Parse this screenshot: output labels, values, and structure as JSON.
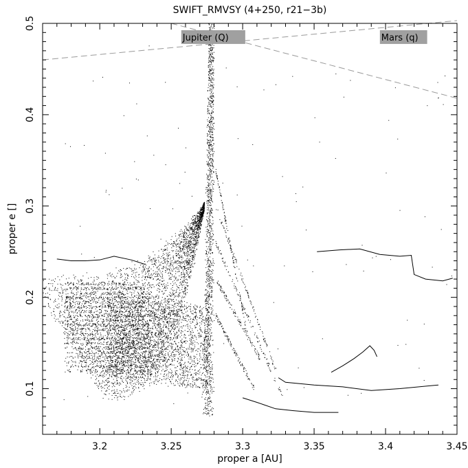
{
  "chart_data": {
    "type": "scatter",
    "title": "SWIFT_RMVSY (4+250, r21−3b)",
    "xlabel": "proper a [AU]",
    "ylabel": "proper e []",
    "xlim": [
      3.16,
      3.45
    ],
    "ylim": [
      0.05,
      0.5
    ],
    "x_ticks": [
      3.2,
      3.25,
      3.3,
      3.35,
      3.4,
      3.45
    ],
    "y_ticks": [
      0.1,
      0.2,
      0.3,
      0.4,
      0.5
    ],
    "grid": false,
    "annotations": [
      {
        "name": "jupiter",
        "text": "Jupiter (Q)",
        "a": 3.258,
        "e": 0.485
      },
      {
        "name": "mars",
        "text": "Mars (q)",
        "a": 3.397,
        "e": 0.485
      }
    ],
    "reference_curves": [
      {
        "name": "jupiter-q-curve",
        "points": [
          [
            3.16,
            0.46
          ],
          [
            3.45,
            0.503
          ]
        ]
      },
      {
        "name": "mars-q-curve",
        "points": [
          [
            3.25,
            0.5
          ],
          [
            3.45,
            0.418
          ]
        ]
      }
    ],
    "resonance_center_a": 3.278,
    "tracks": [
      {
        "name": "track-1",
        "points": [
          [
            3.352,
            0.25
          ],
          [
            3.368,
            0.252
          ],
          [
            3.382,
            0.253
          ],
          [
            3.396,
            0.247
          ],
          [
            3.41,
            0.245
          ],
          [
            3.418,
            0.246
          ],
          [
            3.42,
            0.225
          ],
          [
            3.428,
            0.22
          ],
          [
            3.44,
            0.218
          ],
          [
            3.447,
            0.221
          ]
        ]
      },
      {
        "name": "track-2",
        "points": [
          [
            3.362,
            0.118
          ],
          [
            3.37,
            0.125
          ],
          [
            3.378,
            0.133
          ],
          [
            3.384,
            0.14
          ],
          [
            3.389,
            0.147
          ],
          [
            3.392,
            0.142
          ],
          [
            3.394,
            0.135
          ]
        ]
      },
      {
        "name": "track-3",
        "points": [
          [
            3.325,
            0.112
          ],
          [
            3.33,
            0.107
          ],
          [
            3.35,
            0.104
          ],
          [
            3.37,
            0.102
          ],
          [
            3.39,
            0.098
          ],
          [
            3.41,
            0.1
          ],
          [
            3.437,
            0.104
          ]
        ]
      },
      {
        "name": "track-4",
        "points": [
          [
            3.3,
            0.09
          ],
          [
            3.31,
            0.085
          ],
          [
            3.323,
            0.078
          ],
          [
            3.335,
            0.076
          ],
          [
            3.35,
            0.074
          ],
          [
            3.367,
            0.074
          ]
        ]
      },
      {
        "name": "track-5",
        "points": [
          [
            3.17,
            0.242
          ],
          [
            3.18,
            0.24
          ],
          [
            3.19,
            0.24
          ],
          [
            3.2,
            0.241
          ],
          [
            3.21,
            0.245
          ],
          [
            3.222,
            0.241
          ],
          [
            3.232,
            0.236
          ]
        ]
      }
    ]
  }
}
